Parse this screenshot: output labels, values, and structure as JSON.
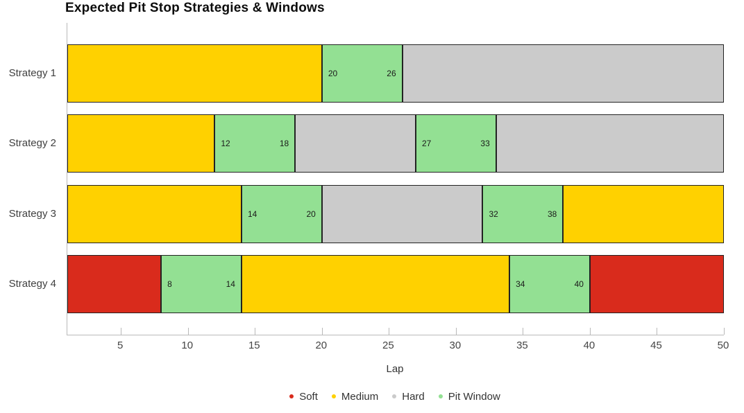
{
  "title": "Expected Pit Stop Strategies & Windows",
  "colors": {
    "compounds": {
      "Soft": "#D92B1C",
      "Medium": "#FFD100",
      "Hard": "#CBCBCB"
    },
    "pit_window": "#93E093",
    "segment_border": "#222222",
    "axis_line": "#B9B9B9",
    "tick_label": "#444444",
    "text": "#333333"
  },
  "chart_data": {
    "type": "bar",
    "orientation": "horizontal",
    "title": "Expected Pit Stop Strategies & Windows",
    "xlabel": "Lap",
    "ylabel": "",
    "xlim": [
      1,
      50
    ],
    "x_ticks": [
      5,
      10,
      15,
      20,
      25,
      30,
      35,
      40,
      45,
      50
    ],
    "grid": false,
    "legend_position": "bottom-center",
    "categories": [
      "Strategy 1",
      "Strategy 2",
      "Strategy 3",
      "Strategy 4"
    ],
    "legend": [
      {
        "label": "Soft",
        "color": "#D92B1C"
      },
      {
        "label": "Medium",
        "color": "#FFD100"
      },
      {
        "label": "Hard",
        "color": "#CBCBCB"
      },
      {
        "label": "Pit Window",
        "color": "#93E093"
      }
    ],
    "strategies": [
      {
        "name": "Strategy 1",
        "segments": [
          {
            "kind": "stint",
            "compound": "Medium",
            "start": 1,
            "end": 20
          },
          {
            "kind": "pit_window",
            "start": 20,
            "end": 26
          },
          {
            "kind": "stint",
            "compound": "Hard",
            "start": 26,
            "end": 50
          }
        ]
      },
      {
        "name": "Strategy 2",
        "segments": [
          {
            "kind": "stint",
            "compound": "Medium",
            "start": 1,
            "end": 12
          },
          {
            "kind": "pit_window",
            "start": 12,
            "end": 18
          },
          {
            "kind": "stint",
            "compound": "Hard",
            "start": 18,
            "end": 27
          },
          {
            "kind": "pit_window",
            "start": 27,
            "end": 33
          },
          {
            "kind": "stint",
            "compound": "Hard",
            "start": 33,
            "end": 50
          }
        ]
      },
      {
        "name": "Strategy 3",
        "segments": [
          {
            "kind": "stint",
            "compound": "Medium",
            "start": 1,
            "end": 14
          },
          {
            "kind": "pit_window",
            "start": 14,
            "end": 20
          },
          {
            "kind": "stint",
            "compound": "Hard",
            "start": 20,
            "end": 32
          },
          {
            "kind": "pit_window",
            "start": 32,
            "end": 38
          },
          {
            "kind": "stint",
            "compound": "Medium",
            "start": 38,
            "end": 50
          }
        ]
      },
      {
        "name": "Strategy 4",
        "segments": [
          {
            "kind": "stint",
            "compound": "Soft",
            "start": 1,
            "end": 8
          },
          {
            "kind": "pit_window",
            "start": 8,
            "end": 14
          },
          {
            "kind": "stint",
            "compound": "Medium",
            "start": 14,
            "end": 34
          },
          {
            "kind": "pit_window",
            "start": 34,
            "end": 40
          },
          {
            "kind": "stint",
            "compound": "Soft",
            "start": 40,
            "end": 50
          }
        ]
      }
    ]
  }
}
